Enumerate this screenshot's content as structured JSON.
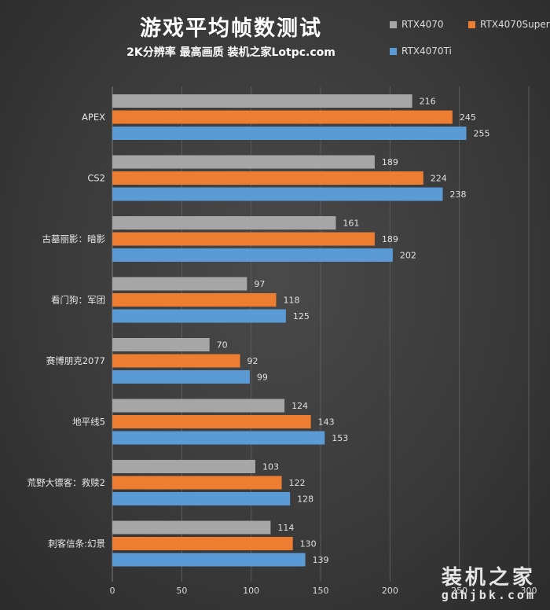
{
  "chart_data": {
    "type": "bar",
    "orientation": "horizontal",
    "title": "游戏平均帧数测试",
    "subtitle": "2K分辨率  最高画质  装机之家Lotpc.com",
    "categories": [
      "APEX",
      "CS2",
      "古墓丽影：暗影",
      "看门狗：军团",
      "赛博朋克2077",
      "地平线5",
      "荒野大镖客：救赎2",
      "刺客信条:幻景"
    ],
    "series": [
      {
        "name": "RTX4070",
        "color": "#a6a6a6",
        "values": [
          216,
          189,
          161,
          97,
          70,
          124,
          103,
          114
        ]
      },
      {
        "name": "RTX4070Super",
        "color": "#ed7d31",
        "values": [
          245,
          224,
          189,
          118,
          92,
          143,
          122,
          130
        ]
      },
      {
        "name": "RTX4070Ti",
        "color": "#5b9bd5",
        "values": [
          255,
          238,
          202,
          125,
          99,
          153,
          128,
          139
        ]
      }
    ],
    "xlim": [
      0,
      300
    ],
    "xticks": [
      0,
      50,
      100,
      150,
      200,
      250,
      300
    ],
    "grid": true,
    "legend_position": "top-right"
  },
  "watermark": {
    "main": "装机之家",
    "sub": "gdhjbk.com"
  }
}
